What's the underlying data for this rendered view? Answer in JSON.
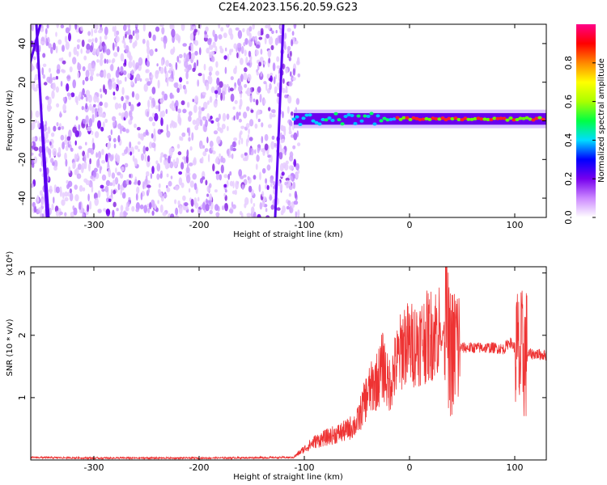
{
  "title": "C2E4.2023.156.20.59.G23",
  "chart_data": [
    {
      "type": "heatmap",
      "xlabel": "Height of straight line (km)",
      "ylabel": "Frequency (Hz)",
      "xlim": [
        -360,
        130
      ],
      "ylim": [
        -50,
        50
      ],
      "xticks": [
        -300,
        -200,
        -100,
        0,
        100
      ],
      "yticks": [
        -40,
        -20,
        0,
        20,
        40
      ],
      "colorbar": {
        "label": "Normalized spectral amplitude",
        "range": [
          0.0,
          1.0
        ],
        "ticks": [
          "0.0",
          "0.2",
          "0.4",
          "0.6",
          "0.8"
        ],
        "colors": [
          "#ffffff",
          "#cc88ff",
          "#7700ee",
          "#0000ff",
          "#00ddff",
          "#00ff44",
          "#aaff00",
          "#ffff00",
          "#ff8800",
          "#ff0000",
          "#ff0088"
        ]
      },
      "noise_region": {
        "x_from": -360,
        "x_to": -105,
        "y_from": -50,
        "y_to": 50
      },
      "signal_band": {
        "x_from": -110,
        "x_to": 130,
        "center_freq_hz": 1,
        "width_hz": 6
      }
    },
    {
      "type": "line",
      "xlabel": "Height of straight line (km)",
      "ylabel": "SNR (10 * v/v)",
      "y_multiplier": "(x10⁴)",
      "xlim": [
        -360,
        130
      ],
      "ylim": [
        0,
        3.1
      ],
      "xticks": [
        -300,
        -200,
        -100,
        0,
        100
      ],
      "yticks": [
        1,
        2,
        3
      ],
      "series": [
        {
          "color": "#ee3333",
          "x": [
            -360,
            -300,
            -200,
            -110,
            -100,
            -90,
            -80,
            -70,
            -60,
            -50,
            -45,
            -40,
            -35,
            -30,
            -25,
            -20,
            -15,
            -10,
            -5,
            0,
            10,
            20,
            30,
            35,
            38,
            40,
            42,
            44,
            46,
            50,
            60,
            70,
            80,
            90,
            95,
            100,
            105,
            108,
            110,
            120,
            130
          ],
          "y": [
            0.04,
            0.03,
            0.03,
            0.04,
            0.15,
            0.25,
            0.3,
            0.35,
            0.4,
            0.5,
            0.7,
            0.9,
            1.0,
            1.1,
            1.3,
            1.0,
            1.2,
            1.4,
            1.6,
            1.55,
            1.62,
            1.7,
            1.8,
            2.5,
            1.6,
            1.8,
            1.6,
            2.0,
            1.8,
            1.8,
            1.8,
            1.8,
            1.8,
            1.78,
            1.9,
            1.8,
            1.6,
            1.7,
            1.7,
            1.7,
            1.68
          ]
        }
      ]
    }
  ]
}
